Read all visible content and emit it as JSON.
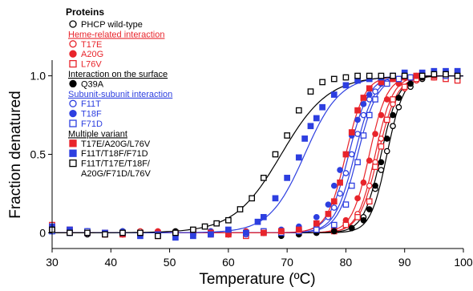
{
  "chart_data": {
    "type": "scatter",
    "xlabel": "Temperature (ºC)",
    "ylabel": "Fraction denatured",
    "xlim": [
      30,
      100
    ],
    "ylim": [
      -0.1,
      1.1
    ],
    "x_ticks": [
      30,
      40,
      50,
      60,
      70,
      80,
      90,
      100
    ],
    "y_ticks": [
      0,
      0.5,
      1.0
    ],
    "x_tick_labels": [
      "30",
      "40",
      "50",
      "60",
      "70",
      "80",
      "90",
      "100"
    ],
    "y_tick_labels": [
      "0",
      "0.5",
      "1.0"
    ],
    "grid": false,
    "legend_position": "top-left",
    "legend": {
      "title": "Proteins",
      "groups": [
        {
          "header": "",
          "color": "#000000",
          "entries": [
            {
              "label": "PHCP wild-type",
              "series": 0
            }
          ]
        },
        {
          "header": "Heme-related interaction",
          "color": "#e8242b",
          "entries": [
            {
              "label": "T17E",
              "series": 1
            },
            {
              "label": "A20G",
              "series": 2
            },
            {
              "label": "L76V",
              "series": 3
            }
          ]
        },
        {
          "header": "Interaction on the surface",
          "color": "#000000",
          "entries": [
            {
              "label": "Q39A",
              "series": 4
            }
          ]
        },
        {
          "header": "Subunit-subunit interaction",
          "color": "#2d3fe0",
          "entries": [
            {
              "label": "F11T",
              "series": 5
            },
            {
              "label": "T18F",
              "series": 6
            },
            {
              "label": "F71D",
              "series": 7
            }
          ]
        },
        {
          "header": "Multiple variant",
          "color": "#000000",
          "entries": [
            {
              "label": "T17E/A20G/L76V",
              "series": 8
            },
            {
              "label": "F11T/T18F/F71D",
              "series": 9
            },
            {
              "label": "F11T/T17E/T18F/",
              "label2": "A20G/F71D/L76V",
              "series": 10
            }
          ]
        }
      ]
    },
    "series": [
      {
        "name": "PHCP wild-type",
        "color": "#000000",
        "marker": "circle-open",
        "tm": 87.0,
        "slope": 1.4,
        "x": [
          30,
          33,
          36,
          39,
          42,
          45,
          48,
          51,
          54,
          57,
          60,
          63,
          66,
          69,
          72,
          75,
          78,
          81,
          83,
          85,
          86,
          87,
          88,
          89,
          91,
          93,
          95,
          97,
          99
        ],
        "y": [
          0.02,
          0.0,
          -0.01,
          0.0,
          0.01,
          0.0,
          -0.02,
          0.0,
          0.01,
          0.0,
          -0.01,
          0.0,
          0.0,
          0.0,
          0.01,
          0.0,
          0.02,
          0.03,
          0.1,
          0.28,
          0.4,
          0.52,
          0.68,
          0.8,
          0.93,
          0.98,
          1.0,
          1.0,
          1.01
        ]
      },
      {
        "name": "T17E",
        "color": "#e8242b",
        "marker": "circle-open",
        "tm": 85.0,
        "slope": 1.5,
        "x": [
          30,
          33,
          36,
          39,
          42,
          45,
          48,
          51,
          54,
          57,
          60,
          63,
          66,
          69,
          72,
          75,
          78,
          80,
          82,
          84,
          85,
          86,
          87,
          88,
          90,
          92,
          95,
          97,
          99
        ],
        "y": [
          0.03,
          0.01,
          0.0,
          -0.01,
          0.0,
          0.01,
          0.0,
          -0.01,
          0.0,
          0.01,
          0.0,
          -0.01,
          0.0,
          0.0,
          0.01,
          0.02,
          0.03,
          0.06,
          0.12,
          0.3,
          0.45,
          0.6,
          0.72,
          0.82,
          0.92,
          0.97,
          0.99,
          1.0,
          1.0
        ]
      },
      {
        "name": "A20G",
        "color": "#e8242b",
        "marker": "circle-filled",
        "tm": 84.0,
        "slope": 1.5,
        "x": [
          30,
          33,
          36,
          39,
          42,
          45,
          48,
          51,
          54,
          57,
          60,
          63,
          66,
          69,
          72,
          75,
          78,
          80,
          82,
          83,
          84,
          85,
          86,
          87,
          89,
          91,
          93,
          95,
          97,
          99
        ],
        "y": [
          0.02,
          0.0,
          0.01,
          0.0,
          -0.01,
          0.0,
          0.01,
          0.0,
          0.0,
          -0.01,
          0.0,
          0.01,
          0.0,
          0.01,
          0.0,
          0.02,
          0.04,
          0.08,
          0.22,
          0.32,
          0.46,
          0.63,
          0.75,
          0.85,
          0.95,
          0.98,
          0.99,
          1.0,
          1.0,
          1.0
        ]
      },
      {
        "name": "L76V",
        "color": "#e8242b",
        "marker": "square-open",
        "tm": 85.5,
        "slope": 1.6,
        "x": [
          30,
          33,
          36,
          39,
          42,
          45,
          48,
          51,
          54,
          57,
          60,
          63,
          66,
          69,
          72,
          75,
          78,
          80,
          82,
          84,
          85,
          86,
          87,
          88,
          90,
          92,
          95,
          97,
          99
        ],
        "y": [
          0.05,
          0.02,
          0.0,
          -0.01,
          0.0,
          0.0,
          -0.02,
          0.0,
          0.0,
          -0.01,
          0.0,
          -0.02,
          0.0,
          0.01,
          0.0,
          0.02,
          0.01,
          0.05,
          0.1,
          0.2,
          0.42,
          0.55,
          0.72,
          0.85,
          0.93,
          0.98,
          0.99,
          0.98,
          0.97
        ]
      },
      {
        "name": "Q39A",
        "color": "#000000",
        "marker": "circle-filled",
        "tm": 86.0,
        "slope": 1.5,
        "x": [
          30,
          33,
          36,
          39,
          42,
          45,
          48,
          51,
          54,
          57,
          60,
          63,
          66,
          69,
          72,
          75,
          78,
          81,
          83,
          84,
          85,
          86,
          87,
          88,
          89,
          91,
          93,
          95,
          97,
          99
        ],
        "y": [
          0.01,
          0.0,
          0.01,
          0.0,
          -0.01,
          0.0,
          0.0,
          0.01,
          0.0,
          0.0,
          -0.01,
          0.0,
          0.0,
          -0.02,
          -0.01,
          0.0,
          0.01,
          0.03,
          0.08,
          0.15,
          0.3,
          0.45,
          0.6,
          0.75,
          0.86,
          0.95,
          0.99,
          1.0,
          1.0,
          1.0
        ]
      },
      {
        "name": "F11T",
        "color": "#2d3fe0",
        "marker": "circle-open",
        "tm": 81.5,
        "slope": 1.7,
        "x": [
          30,
          33,
          36,
          39,
          42,
          45,
          48,
          51,
          54,
          57,
          60,
          63,
          66,
          69,
          72,
          75,
          77,
          78,
          79,
          80,
          81,
          82,
          83,
          84,
          85,
          87,
          89,
          91,
          93,
          95,
          97,
          99
        ],
        "y": [
          0.02,
          0.0,
          0.01,
          0.0,
          0.0,
          -0.01,
          0.0,
          0.0,
          0.01,
          0.0,
          0.0,
          -0.01,
          0.0,
          0.01,
          0.02,
          0.05,
          0.1,
          0.16,
          0.25,
          0.38,
          0.5,
          0.63,
          0.75,
          0.85,
          0.9,
          0.96,
          0.98,
          0.99,
          1.0,
          1.0,
          1.0,
          1.01
        ]
      },
      {
        "name": "T18F",
        "color": "#2d3fe0",
        "marker": "circle-filled",
        "tm": 80.5,
        "slope": 1.7,
        "x": [
          30,
          33,
          36,
          39,
          42,
          45,
          48,
          51,
          54,
          57,
          60,
          63,
          66,
          69,
          72,
          75,
          77,
          78,
          79,
          80,
          81,
          82,
          83,
          84,
          86,
          88,
          90,
          92,
          95,
          97,
          99
        ],
        "y": [
          0.03,
          0.01,
          0.0,
          0.0,
          0.01,
          0.0,
          -0.01,
          0.0,
          0.0,
          0.01,
          0.0,
          0.0,
          0.01,
          0.02,
          0.04,
          0.1,
          0.18,
          0.3,
          0.4,
          0.5,
          0.62,
          0.72,
          0.82,
          0.88,
          0.95,
          0.98,
          0.99,
          1.0,
          1.01,
          1.02,
          1.02
        ]
      },
      {
        "name": "F71D",
        "color": "#2d3fe0",
        "marker": "square-open",
        "tm": 82.0,
        "slope": 1.7,
        "x": [
          30,
          33,
          36,
          39,
          42,
          45,
          48,
          51,
          54,
          57,
          60,
          63,
          66,
          69,
          72,
          75,
          78,
          80,
          81,
          82,
          83,
          84,
          85,
          87,
          89,
          91,
          93,
          95,
          97,
          99
        ],
        "y": [
          0.01,
          0.0,
          0.01,
          0.0,
          0.0,
          0.0,
          -0.01,
          0.0,
          0.0,
          0.0,
          0.0,
          0.0,
          0.01,
          0.0,
          0.01,
          0.02,
          0.05,
          0.18,
          0.3,
          0.45,
          0.62,
          0.75,
          0.85,
          0.95,
          0.98,
          0.99,
          1.0,
          1.0,
          1.0,
          1.0
        ]
      },
      {
        "name": "T17E/A20G/L76V",
        "color": "#e8242b",
        "marker": "square-filled",
        "tm": 80.0,
        "slope": 1.6,
        "x": [
          30,
          33,
          36,
          39,
          42,
          45,
          48,
          51,
          54,
          57,
          60,
          63,
          66,
          69,
          72,
          75,
          77,
          78,
          79,
          80,
          81,
          82,
          83,
          84,
          86,
          88,
          90,
          92,
          95,
          97,
          99
        ],
        "y": [
          0.03,
          0.01,
          0.0,
          0.0,
          -0.01,
          0.0,
          0.0,
          0.0,
          0.01,
          0.0,
          -0.01,
          0.0,
          0.0,
          0.01,
          0.02,
          0.06,
          0.12,
          0.2,
          0.32,
          0.5,
          0.64,
          0.78,
          0.86,
          0.92,
          0.96,
          0.98,
          0.99,
          1.0,
          1.0,
          1.01,
          1.02
        ]
      },
      {
        "name": "F11T/T18F/F71D",
        "color": "#2d3fe0",
        "marker": "square-filled",
        "tm": 73.0,
        "slope": 3.0,
        "x": [
          30,
          33,
          36,
          39,
          42,
          45,
          48,
          51,
          54,
          57,
          60,
          63,
          65,
          66,
          68,
          70,
          72,
          73,
          74,
          75,
          76,
          78,
          80,
          82,
          84,
          86,
          88,
          90,
          93,
          95,
          97,
          99
        ],
        "y": [
          0.04,
          0.02,
          0.0,
          0.0,
          0.0,
          -0.02,
          -0.01,
          -0.03,
          -0.02,
          -0.01,
          0.02,
          0.0,
          0.07,
          0.1,
          0.22,
          0.35,
          0.48,
          0.6,
          0.68,
          0.73,
          0.8,
          0.88,
          0.94,
          0.97,
          0.98,
          0.99,
          1.0,
          1.02,
          1.02,
          1.03,
          1.03,
          1.03
        ]
      },
      {
        "name": "F11T/T17E/T18F/A20G/F71D/L76V",
        "color": "#000000",
        "marker": "square-open",
        "tm": 69.0,
        "slope": 4.0,
        "x": [
          30,
          33,
          36,
          39,
          42,
          45,
          48,
          51,
          54,
          56,
          58,
          60,
          62,
          64,
          66,
          68,
          70,
          72,
          74,
          76,
          78,
          80,
          82,
          84,
          86,
          88,
          90,
          93,
          95,
          97,
          99
        ],
        "y": [
          0.02,
          0.0,
          0.0,
          -0.01,
          0.0,
          0.0,
          -0.02,
          0.0,
          0.02,
          0.04,
          0.06,
          0.08,
          0.15,
          0.22,
          0.35,
          0.5,
          0.62,
          0.78,
          0.9,
          0.96,
          0.98,
          0.99,
          1.0,
          1.0,
          1.0,
          1.0,
          1.0,
          1.0,
          1.01,
          1.01,
          1.0
        ]
      }
    ]
  }
}
